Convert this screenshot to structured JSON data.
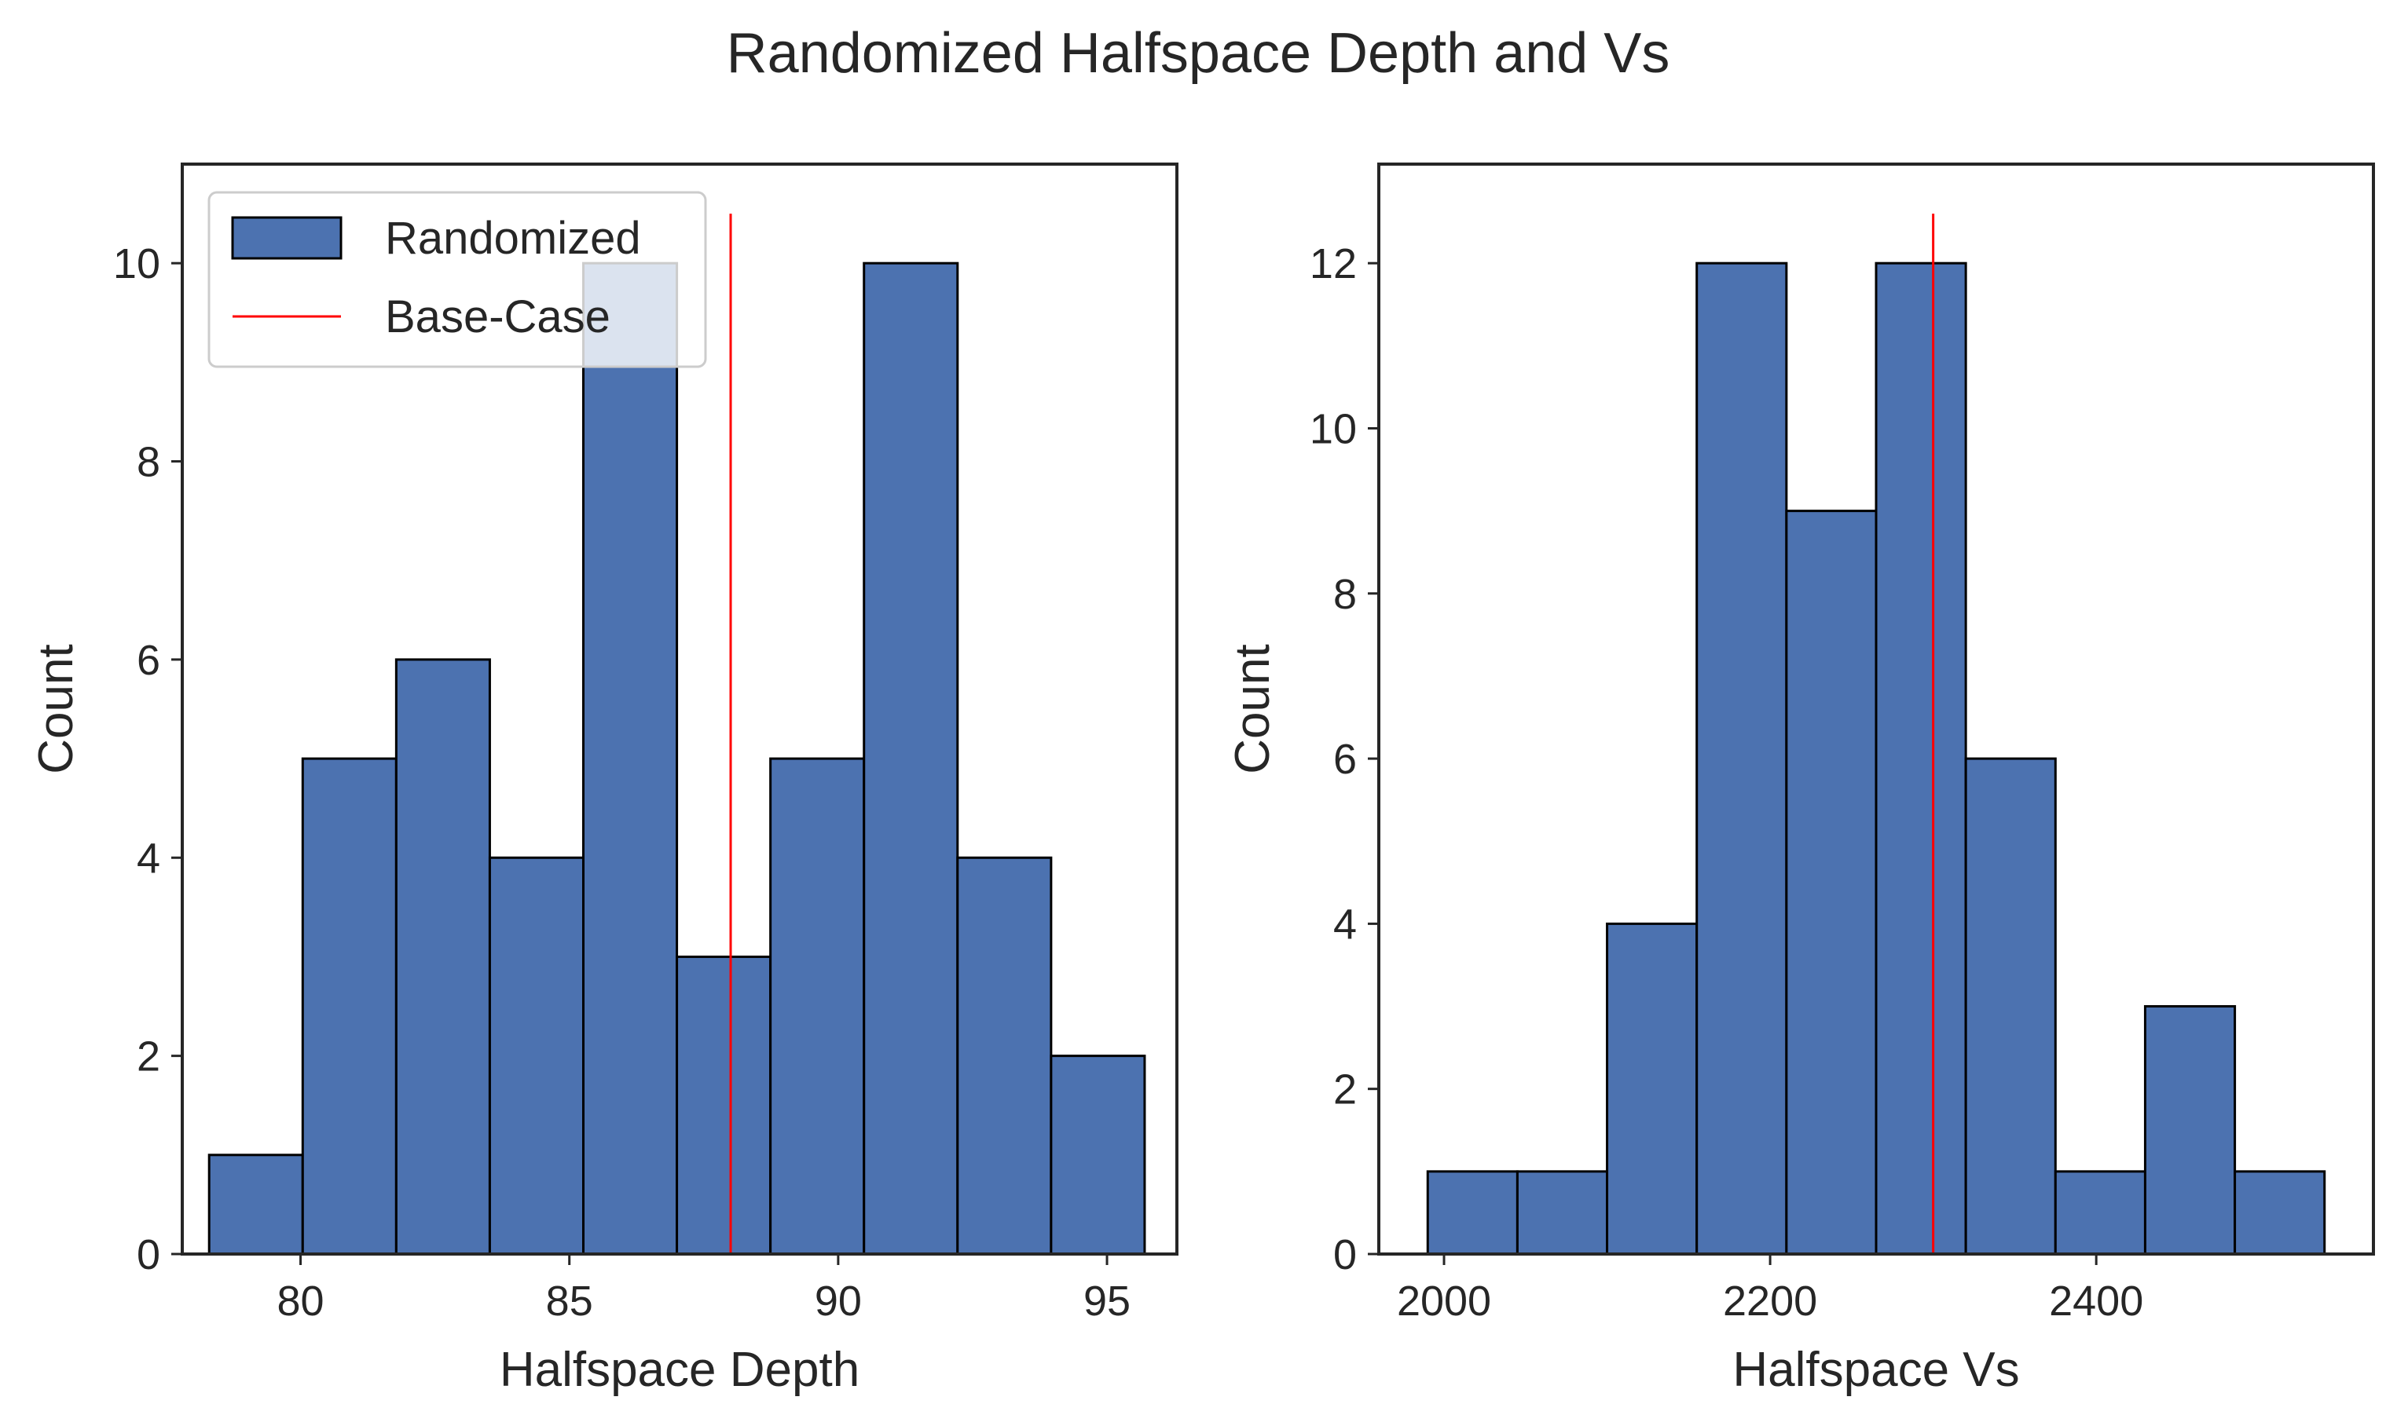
{
  "figure": {
    "title": "Randomized Halfspace Depth and Vs"
  },
  "colors": {
    "bar_fill": "#4c72b0",
    "bar_edge": "#000000",
    "base_case_line": "#ff0000",
    "axes_edge": "#262626"
  },
  "legend": {
    "items": [
      {
        "label": "Randomized",
        "kind": "patch"
      },
      {
        "label": "Base-Case",
        "kind": "line"
      }
    ],
    "placement": "upper-left"
  },
  "chart_data": [
    {
      "type": "bar",
      "histogram": true,
      "xlabel": "Halfspace Depth",
      "ylabel": "Count",
      "bin_edges": [
        78.3,
        80.04,
        81.78,
        83.52,
        85.26,
        87.0,
        88.74,
        90.48,
        92.22,
        93.96,
        95.7
      ],
      "values": [
        1,
        5,
        6,
        4,
        10,
        3,
        5,
        10,
        4,
        2
      ],
      "base_case": 88.0,
      "base_case_ymax": 10.5,
      "xlim": [
        77.8,
        96.3
      ],
      "ylim": [
        0,
        11
      ],
      "xticks": [
        80,
        85,
        90,
        95
      ],
      "yticks": [
        0,
        2,
        4,
        6,
        8,
        10
      ],
      "grid": false,
      "legend": true
    },
    {
      "type": "bar",
      "histogram": true,
      "xlabel": "Halfspace Vs",
      "ylabel": "Count",
      "bin_edges": [
        1990,
        2045,
        2100,
        2155,
        2210,
        2265,
        2320,
        2375,
        2430,
        2485,
        2540
      ],
      "values": [
        1,
        1,
        4,
        12,
        9,
        12,
        6,
        1,
        3,
        1
      ],
      "base_case": 2300,
      "base_case_ymax": 12.6,
      "xlim": [
        1960,
        2570
      ],
      "ylim": [
        0,
        13.2
      ],
      "xticks": [
        2000,
        2200,
        2400
      ],
      "yticks": [
        0,
        2,
        4,
        6,
        8,
        10,
        12
      ],
      "grid": false,
      "legend": false
    }
  ]
}
